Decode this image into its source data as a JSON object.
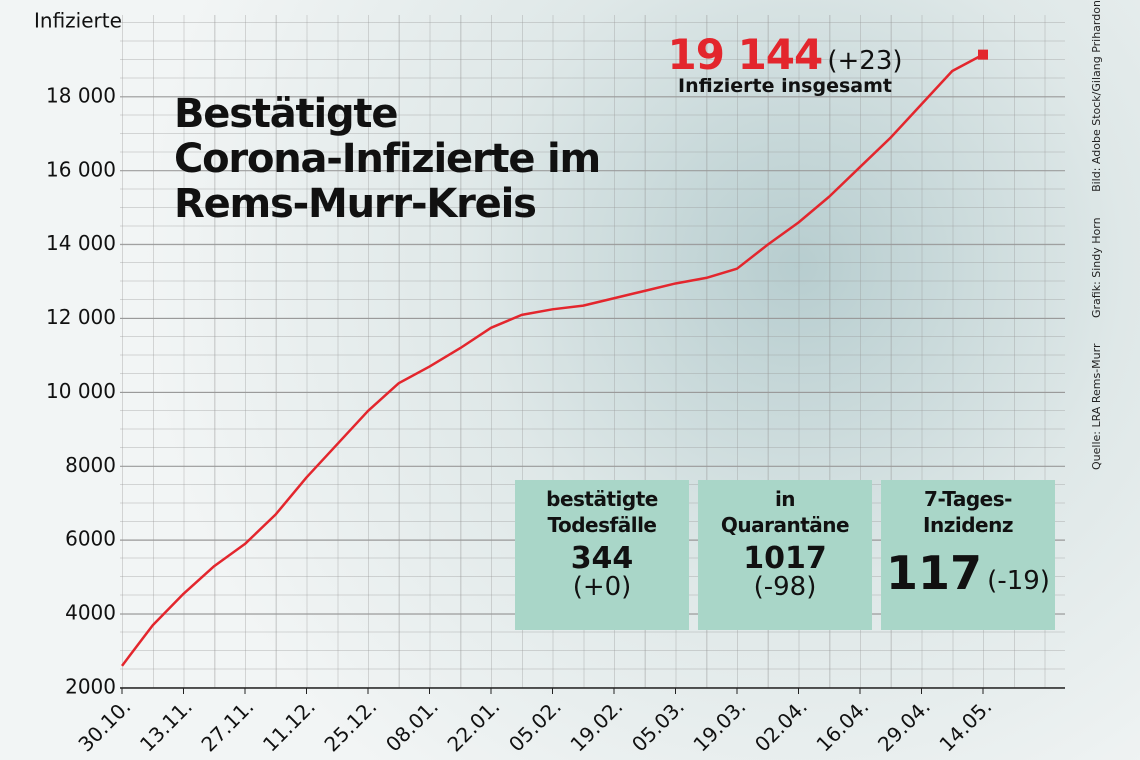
{
  "chart_data": {
    "type": "line",
    "title": [
      "Bestätigte",
      "Corona-Infizierte im",
      "Rems-Murr-Kreis"
    ],
    "y_label": "Infizierte",
    "categories": [
      "30.10.",
      null,
      "13.11.",
      null,
      "27.11.",
      null,
      "11.12.",
      null,
      "25.12.",
      null,
      "08.01.",
      null,
      "22.01.",
      null,
      "05.02.",
      null,
      "19.02.",
      null,
      "05.03.",
      null,
      "19.03.",
      null,
      "02.04.",
      null,
      "16.04.",
      null,
      "29.04.",
      null,
      "14.05."
    ],
    "series": [
      {
        "name": "Infizierte",
        "color": "#e3262d",
        "values": [
          2600,
          3700,
          4550,
          5300,
          5900,
          6700,
          7700,
          8600,
          9500,
          10250,
          10700,
          11200,
          11750,
          12100,
          12250,
          12350,
          12550,
          12750,
          12950,
          13100,
          13350,
          14000,
          14600,
          15300,
          16100,
          16900,
          17800,
          18700,
          19144
        ]
      }
    ],
    "ylim": [
      2000,
      20000
    ],
    "yticks": [
      2000,
      4000,
      6000,
      8000,
      {
        "value": 10000,
        "label": "10 000"
      },
      {
        "value": 12000,
        "label": "12 000"
      },
      {
        "value": 14000,
        "label": "14 000"
      },
      {
        "value": 16000,
        "label": "16 000"
      },
      {
        "value": 18000,
        "label": "18 000"
      }
    ],
    "grid": true,
    "total": {
      "value": "19 144",
      "change": "(+23)",
      "caption": "Infizierte insgesamt"
    },
    "boxes": [
      {
        "title": "bestätigte Todesfälle",
        "value": "344",
        "change": "(+0)"
      },
      {
        "title": "in Quarantäne",
        "value": "1017",
        "change": "(-98)"
      },
      {
        "title": "7-Tages-Inzidenz",
        "value": "117",
        "change": "(-19)"
      }
    ],
    "credits": [
      "Quelle: LRA Rems-Murr",
      "Grafik: Sindy Horn",
      "Bild: Adobe Stock/Gilang Prihardono"
    ]
  }
}
